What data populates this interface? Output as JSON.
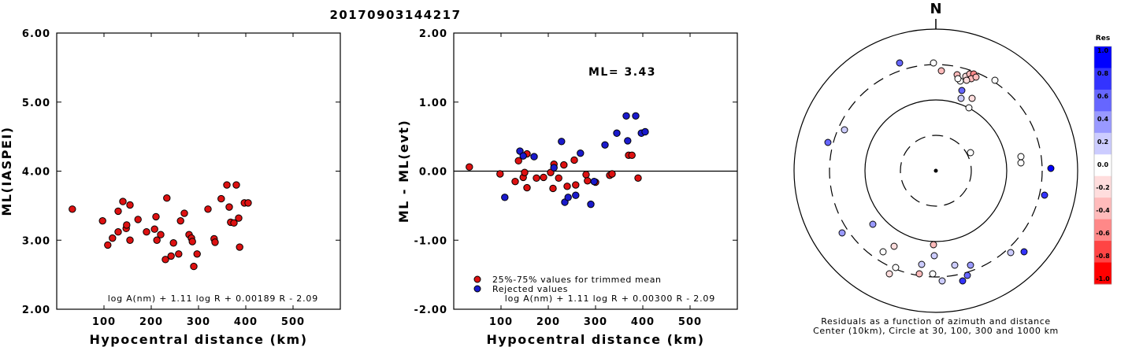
{
  "title": "20170903144217",
  "chart_data": [
    {
      "type": "scatter",
      "name": "left",
      "xlabel": "Hypocentral distance (km)",
      "ylabel": "ML(IASPEI)",
      "xlim": [
        0,
        600
      ],
      "ylim": [
        2.0,
        6.0
      ],
      "xticks": [
        100,
        200,
        300,
        400,
        500
      ],
      "yticks": [
        2.0,
        3.0,
        4.0,
        5.0,
        6.0
      ],
      "ytick_labels": [
        "2.00",
        "3.00",
        "4.00",
        "5.00",
        "6.00"
      ],
      "formula": "log A(nm) + 1.11 log R + 0.00189 R - 2.09",
      "marker_color": "#dd1111",
      "points": [
        [
          33,
          3.45
        ],
        [
          97,
          3.28
        ],
        [
          108,
          2.93
        ],
        [
          118,
          3.03
        ],
        [
          130,
          3.12
        ],
        [
          130,
          3.42
        ],
        [
          140,
          3.56
        ],
        [
          147,
          3.17
        ],
        [
          148,
          3.22
        ],
        [
          155,
          3.51
        ],
        [
          155,
          3.0
        ],
        [
          172,
          3.3
        ],
        [
          190,
          3.12
        ],
        [
          207,
          3.16
        ],
        [
          210,
          3.34
        ],
        [
          212,
          3.0
        ],
        [
          220,
          3.08
        ],
        [
          233,
          3.61
        ],
        [
          230,
          2.72
        ],
        [
          242,
          2.77
        ],
        [
          247,
          2.96
        ],
        [
          258,
          2.8
        ],
        [
          262,
          3.28
        ],
        [
          270,
          3.39
        ],
        [
          280,
          3.08
        ],
        [
          285,
          3.03
        ],
        [
          287,
          2.98
        ],
        [
          290,
          2.62
        ],
        [
          297,
          2.8
        ],
        [
          320,
          3.45
        ],
        [
          333,
          3.02
        ],
        [
          335,
          2.97
        ],
        [
          348,
          3.6
        ],
        [
          360,
          3.8
        ],
        [
          365,
          3.48
        ],
        [
          368,
          3.26
        ],
        [
          375,
          3.25
        ],
        [
          380,
          3.8
        ],
        [
          385,
          3.32
        ],
        [
          387,
          2.9
        ],
        [
          397,
          3.54
        ],
        [
          405,
          3.54
        ]
      ]
    },
    {
      "type": "scatter",
      "name": "middle",
      "xlabel": "Hypocentral distance (km)",
      "ylabel": "ML - ML(evt)",
      "xlim": [
        0,
        600
      ],
      "ylim": [
        -2.0,
        2.0
      ],
      "xticks": [
        100,
        200,
        300,
        400,
        500
      ],
      "yticks": [
        -2.0,
        -1.0,
        0.0,
        1.0,
        2.0
      ],
      "ytick_labels": [
        "-2.00",
        "-1.00",
        "0.00",
        "1.00",
        "2.00"
      ],
      "reference_line": 0.0,
      "annotation": "ML= 3.43",
      "formula": "log A(nm) + 1.11 log R + 0.00300 R - 2.09",
      "legend": [
        {
          "label": "25%-75% values for trimmed mean",
          "color": "#dd1111"
        },
        {
          "label": "Rejected values",
          "color": "#1a1acc"
        }
      ],
      "series": [
        {
          "color": "#dd1111",
          "points": [
            [
              33,
              0.06
            ],
            [
              98,
              -0.04
            ],
            [
              130,
              -0.15
            ],
            [
              137,
              0.15
            ],
            [
              147,
              -0.09
            ],
            [
              150,
              -0.02
            ],
            [
              155,
              0.25
            ],
            [
              155,
              -0.24
            ],
            [
              175,
              -0.1
            ],
            [
              190,
              -0.09
            ],
            [
              205,
              -0.02
            ],
            [
              210,
              -0.25
            ],
            [
              212,
              0.1
            ],
            [
              222,
              -0.1
            ],
            [
              233,
              0.09
            ],
            [
              240,
              -0.22
            ],
            [
              255,
              0.16
            ],
            [
              258,
              -0.2
            ],
            [
              280,
              -0.05
            ],
            [
              283,
              -0.14
            ],
            [
              300,
              -0.16
            ],
            [
              330,
              -0.06
            ],
            [
              335,
              -0.04
            ],
            [
              370,
              0.23
            ],
            [
              377,
              0.23
            ],
            [
              390,
              -0.1
            ]
          ]
        },
        {
          "color": "#1a1acc",
          "points": [
            [
              108,
              -0.38
            ],
            [
              140,
              0.29
            ],
            [
              147,
              0.22
            ],
            [
              170,
              0.21
            ],
            [
              212,
              0.05
            ],
            [
              228,
              0.43
            ],
            [
              235,
              -0.45
            ],
            [
              242,
              -0.38
            ],
            [
              258,
              -0.35
            ],
            [
              268,
              0.26
            ],
            [
              290,
              -0.48
            ],
            [
              297,
              -0.15
            ],
            [
              320,
              0.38
            ],
            [
              345,
              0.55
            ],
            [
              365,
              0.8
            ],
            [
              368,
              0.44
            ],
            [
              385,
              0.8
            ],
            [
              397,
              0.55
            ],
            [
              405,
              0.57
            ]
          ]
        }
      ]
    },
    {
      "type": "polar-scatter",
      "name": "residuals",
      "north_label": "N",
      "caption_lines": [
        "Residuals as a function of azimuth and distance",
        "Center (10km), Circle at 30, 100, 300 and 1000 km"
      ],
      "colorbar": {
        "title": "Res",
        "levels": [
          1.0,
          0.8,
          0.6,
          0.4,
          0.2,
          0.0,
          -0.2,
          -0.4,
          -0.6,
          -0.8,
          -1.0
        ],
        "labels": [
          "1.0",
          "0.8",
          "0.6",
          "0.4",
          "0.2",
          "0.0",
          "-0.2",
          "-0.4",
          "-0.6",
          "-0.8",
          "-1.0"
        ],
        "colors": [
          "#0000ff",
          "#3333ff",
          "#6666ff",
          "#9999ff",
          "#ccccff",
          "#ffffff",
          "#ffdddd",
          "#ffbbbb",
          "#ff8888",
          "#ff4444",
          "#ff0000"
        ]
      },
      "points": [
        {
          "dx": -46,
          "dy": -137,
          "res": 0.5
        },
        {
          "dx": -3,
          "dy": -137,
          "res": 0.0
        },
        {
          "dx": 7,
          "dy": -127,
          "res": -0.4
        },
        {
          "dx": 27,
          "dy": -122,
          "res": -0.5
        },
        {
          "dx": 38,
          "dy": -120,
          "res": -0.3
        },
        {
          "dx": 43,
          "dy": -123,
          "res": -0.5
        },
        {
          "dx": 48,
          "dy": -123,
          "res": -0.6
        },
        {
          "dx": 45,
          "dy": -117,
          "res": -0.4
        },
        {
          "dx": 51,
          "dy": -119,
          "res": -0.5
        },
        {
          "dx": 39,
          "dy": -115,
          "res": -0.2
        },
        {
          "dx": 31,
          "dy": -114,
          "res": -0.1
        },
        {
          "dx": 28,
          "dy": -117,
          "res": 0.0
        },
        {
          "dx": 75,
          "dy": -115,
          "res": -0.1
        },
        {
          "dx": 33,
          "dy": -102,
          "res": 0.7
        },
        {
          "dx": 32,
          "dy": -92,
          "res": 0.2
        },
        {
          "dx": 46,
          "dy": -92,
          "res": -0.2
        },
        {
          "dx": 42,
          "dy": -80,
          "res": 0.0
        },
        {
          "dx": -116,
          "dy": -52,
          "res": 0.2
        },
        {
          "dx": -137,
          "dy": -36,
          "res": 0.6
        },
        {
          "dx": 44,
          "dy": -23,
          "res": 0.0
        },
        {
          "dx": 108,
          "dy": -18,
          "res": 0.0
        },
        {
          "dx": 108,
          "dy": -10,
          "res": 0.0
        },
        {
          "dx": 146,
          "dy": -3,
          "res": 0.9
        },
        {
          "dx": 138,
          "dy": 31,
          "res": 0.8
        },
        {
          "dx": -80,
          "dy": 68,
          "res": 0.4
        },
        {
          "dx": -119,
          "dy": 79,
          "res": 0.4
        },
        {
          "dx": -3,
          "dy": 94,
          "res": -0.4
        },
        {
          "dx": -2,
          "dy": 108,
          "res": 0.2
        },
        {
          "dx": -53,
          "dy": 96,
          "res": -0.3
        },
        {
          "dx": -67,
          "dy": 103,
          "res": 0.0
        },
        {
          "dx": -18,
          "dy": 119,
          "res": 0.2
        },
        {
          "dx": -51,
          "dy": 123,
          "res": -0.1
        },
        {
          "dx": -59,
          "dy": 131,
          "res": -0.2
        },
        {
          "dx": -21,
          "dy": 131,
          "res": -0.4
        },
        {
          "dx": -4,
          "dy": 131,
          "res": 0.0
        },
        {
          "dx": 8,
          "dy": 140,
          "res": 0.3
        },
        {
          "dx": 24,
          "dy": 120,
          "res": 0.2
        },
        {
          "dx": 44,
          "dy": 120,
          "res": 0.4
        },
        {
          "dx": 40,
          "dy": 133,
          "res": 0.6
        },
        {
          "dx": 34,
          "dy": 140,
          "res": 0.8
        },
        {
          "dx": 95,
          "dy": 104,
          "res": 0.3
        },
        {
          "dx": 112,
          "dy": 103,
          "res": 0.8
        }
      ]
    }
  ]
}
